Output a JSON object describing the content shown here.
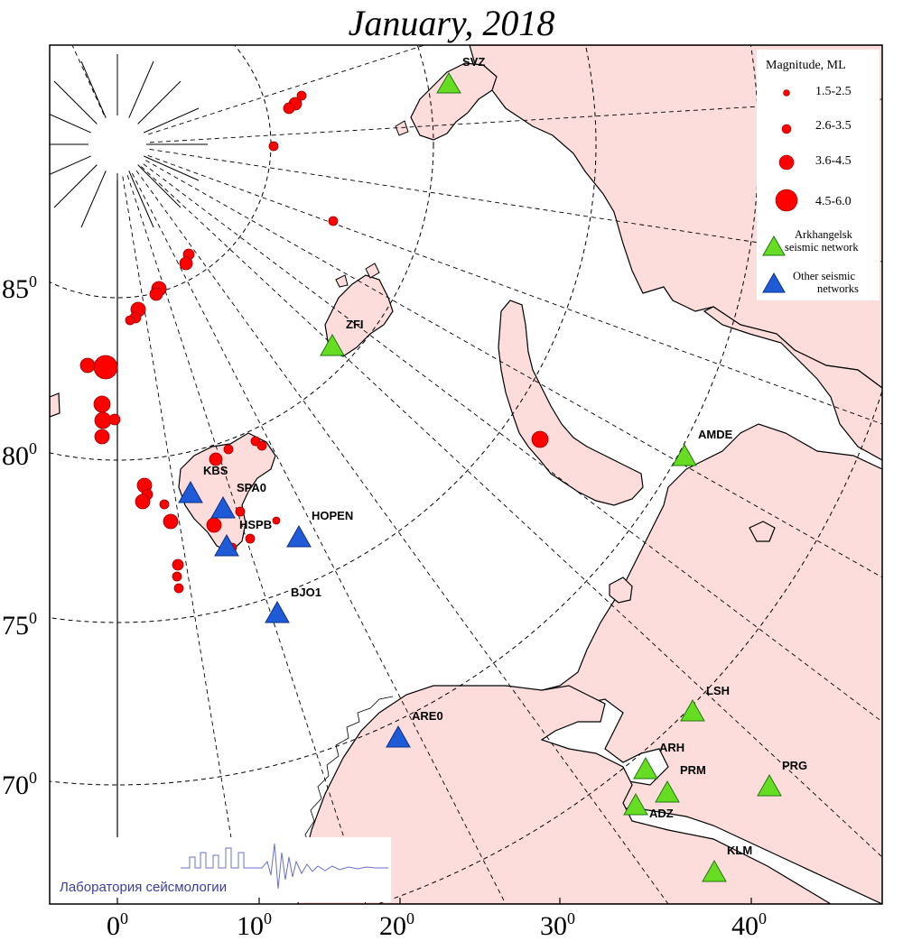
{
  "title": "January, 2018",
  "colors": {
    "land": "#fddcdc",
    "sea": "#ffffff",
    "event": "#ff0000",
    "arkhangelsk_station": "#66dd22",
    "other_station": "#1f5bd6",
    "logo_text": "#3a3fa0"
  },
  "axes": {
    "longitude_labels": [
      {
        "value": "0",
        "deg": "0"
      },
      {
        "value": "10",
        "deg": "0"
      },
      {
        "value": "20",
        "deg": "0"
      },
      {
        "value": "30",
        "deg": "0"
      },
      {
        "value": "40",
        "deg": "0"
      }
    ],
    "latitude_labels": [
      {
        "value": "85",
        "deg": "0"
      },
      {
        "value": "80",
        "deg": "0"
      },
      {
        "value": "75",
        "deg": "0"
      },
      {
        "value": "70",
        "deg": "0"
      }
    ]
  },
  "legend": {
    "title": "Magnitude, ML",
    "magnitudes": [
      {
        "label": "1.5-2.5",
        "size": "small"
      },
      {
        "label": "2.6-3.5",
        "size": "medium"
      },
      {
        "label": "3.6-4.5",
        "size": "large"
      },
      {
        "label": "4.5-6.0",
        "size": "xlarge"
      }
    ],
    "arkhangelsk": {
      "line1": "Arkhangelsk",
      "line2": "seismic network",
      "icon": "green-triangle-icon"
    },
    "other": {
      "line1": "Other seismic",
      "line2": "networks",
      "icon": "blue-triangle-icon"
    }
  },
  "stations": [
    {
      "code": "SVZ",
      "network": "arkhangelsk"
    },
    {
      "code": "ZFI",
      "network": "arkhangelsk"
    },
    {
      "code": "AMDE",
      "network": "arkhangelsk"
    },
    {
      "code": "LSH",
      "network": "arkhangelsk"
    },
    {
      "code": "ARH",
      "network": "arkhangelsk"
    },
    {
      "code": "PRM",
      "network": "arkhangelsk"
    },
    {
      "code": "ADZ",
      "network": "arkhangelsk"
    },
    {
      "code": "PRG",
      "network": "arkhangelsk"
    },
    {
      "code": "KLM",
      "network": "arkhangelsk"
    },
    {
      "code": "KBS",
      "network": "other"
    },
    {
      "code": "SPA0",
      "network": "other"
    },
    {
      "code": "HSPB",
      "network": "other"
    },
    {
      "code": "HOPEN",
      "network": "other"
    },
    {
      "code": "BJO1",
      "network": "other"
    },
    {
      "code": "ARE0",
      "network": "other"
    }
  ],
  "logo": {
    "text": "Лаборатория сейсмологии"
  }
}
